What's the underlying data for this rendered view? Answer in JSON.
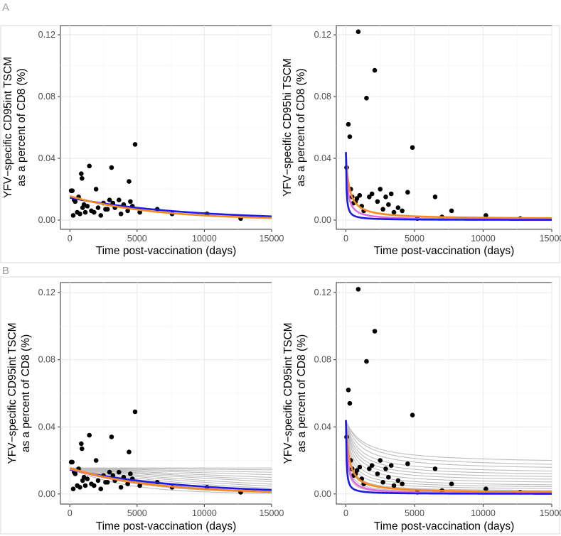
{
  "panel_labels": {
    "A": "A",
    "B": "B"
  },
  "series_colors": {
    "blue": "#1a1ae6",
    "violet": "#e06be0",
    "orange": "#f58a1f",
    "realizations": "#bdbdbd"
  },
  "chart_data": [
    {
      "id": "A-left",
      "type": "scatter",
      "title": "",
      "xlabel": "Time post-vaccination (days)",
      "ylabel_line1": "YFV−specific CD95int TSCM",
      "ylabel_line2": "as a percent of CD8 (%)",
      "xlim": [
        -700,
        15000
      ],
      "ylim": [
        -0.006,
        0.126
      ],
      "xticks": [
        0,
        5000,
        10000,
        15000
      ],
      "xtick_labels": [
        "0",
        "5000",
        "10000",
        "15000"
      ],
      "yticks": [
        0,
        0.04,
        0.08,
        0.12
      ],
      "ytick_labels": [
        "0.00",
        "0.04",
        "0.08",
        "0.12"
      ],
      "points": [
        [
          100,
          0.019
        ],
        [
          180,
          0.019
        ],
        [
          250,
          0.003
        ],
        [
          320,
          0.013
        ],
        [
          400,
          0.012
        ],
        [
          550,
          0.005
        ],
        [
          650,
          0.015
        ],
        [
          750,
          0.004
        ],
        [
          850,
          0.03
        ],
        [
          900,
          0.027
        ],
        [
          950,
          0.008
        ],
        [
          1050,
          0.01
        ],
        [
          1150,
          0.005
        ],
        [
          1300,
          0.009
        ],
        [
          1450,
          0.035
        ],
        [
          1600,
          0.006
        ],
        [
          1800,
          0.005
        ],
        [
          1950,
          0.02
        ],
        [
          2100,
          0.008
        ],
        [
          2300,
          0.003
        ],
        [
          2500,
          0.011
        ],
        [
          2650,
          0.007
        ],
        [
          2800,
          0.007
        ],
        [
          2950,
          0.013
        ],
        [
          3100,
          0.034
        ],
        [
          3200,
          0.011
        ],
        [
          3350,
          0.008
        ],
        [
          3650,
          0.013
        ],
        [
          3800,
          0.004
        ],
        [
          4000,
          0.01
        ],
        [
          4300,
          0.006
        ],
        [
          4400,
          0.025
        ],
        [
          4500,
          0.012
        ],
        [
          4650,
          0.009
        ],
        [
          4850,
          0.049
        ],
        [
          5200,
          0.005
        ],
        [
          6500,
          0.007
        ],
        [
          7600,
          0.004
        ],
        [
          10200,
          0.004
        ],
        [
          12700,
          0.001
        ]
      ],
      "series": [
        {
          "name": "blue",
          "model": "exp",
          "a": 0.0145,
          "b": 0,
          "c": 0.00012
        },
        {
          "name": "orange",
          "model": "exp",
          "a": 0.0155,
          "b": 0,
          "c": 0.000165
        }
      ],
      "realizations": []
    },
    {
      "id": "A-right",
      "type": "scatter",
      "title": "",
      "xlabel": "Time post-vaccination (days)",
      "ylabel_line1": "YFV−specific CD95hi TSCM",
      "ylabel_line2": "as a percent of CD8 (%)",
      "xlim": [
        -700,
        15000
      ],
      "ylim": [
        -0.006,
        0.126
      ],
      "xticks": [
        0,
        5000,
        10000,
        15000
      ],
      "xtick_labels": [
        "0",
        "5000",
        "10000",
        "15000"
      ],
      "yticks": [
        0,
        0.04,
        0.08,
        0.12
      ],
      "ytick_labels": [
        "0.00",
        "0.04",
        "0.08",
        "0.12"
      ],
      "points": [
        [
          50,
          0.034
        ],
        [
          180,
          0.062
        ],
        [
          280,
          0.054
        ],
        [
          350,
          0.02
        ],
        [
          450,
          0.015
        ],
        [
          550,
          0.011
        ],
        [
          700,
          0.012
        ],
        [
          800,
          0.014
        ],
        [
          900,
          0.122
        ],
        [
          1000,
          0.016
        ],
        [
          1150,
          0.009
        ],
        [
          1300,
          0.006
        ],
        [
          1500,
          0.079
        ],
        [
          1700,
          0.015
        ],
        [
          1900,
          0.017
        ],
        [
          2100,
          0.097
        ],
        [
          2300,
          0.012
        ],
        [
          2500,
          0.02
        ],
        [
          2700,
          0.007
        ],
        [
          2900,
          0.015
        ],
        [
          3100,
          0.01
        ],
        [
          3300,
          0.017
        ],
        [
          3500,
          0.005
        ],
        [
          3800,
          0.008
        ],
        [
          4100,
          0.006
        ],
        [
          4500,
          0.018
        ],
        [
          4850,
          0.047
        ],
        [
          5200,
          0.001
        ],
        [
          6500,
          0.015
        ],
        [
          7000,
          0.002
        ],
        [
          7700,
          0.006
        ],
        [
          10200,
          0.003
        ],
        [
          12700,
          0.001
        ]
      ],
      "series": [
        {
          "name": "orange",
          "model": "hyp",
          "a": 0.044,
          "b": 0.0006,
          "c": 0.0045
        },
        {
          "name": "violet",
          "model": "hyp",
          "a": 0.044,
          "b": 0,
          "c": 0.0085
        },
        {
          "name": "blue",
          "model": "hyp",
          "a": 0.044,
          "b": 0,
          "c": 0.025
        }
      ],
      "realizations": []
    },
    {
      "id": "B-left",
      "type": "scatter",
      "title": "",
      "xlabel": "Time post-vaccination (days)",
      "ylabel_line1": "YFV−specific CD95int TSCM",
      "ylabel_line2": "as a percent of CD8 (%)",
      "xlim": [
        -700,
        15000
      ],
      "ylim": [
        -0.006,
        0.126
      ],
      "xticks": [
        0,
        5000,
        10000,
        15000
      ],
      "xtick_labels": [
        "0",
        "5000",
        "10000",
        "15000"
      ],
      "yticks": [
        0,
        0.04,
        0.08,
        0.12
      ],
      "ytick_labels": [
        "0.00",
        "0.04",
        "0.08",
        "0.12"
      ],
      "points": [
        [
          100,
          0.019
        ],
        [
          180,
          0.019
        ],
        [
          250,
          0.003
        ],
        [
          320,
          0.013
        ],
        [
          400,
          0.012
        ],
        [
          550,
          0.005
        ],
        [
          650,
          0.015
        ],
        [
          750,
          0.004
        ],
        [
          850,
          0.03
        ],
        [
          900,
          0.027
        ],
        [
          950,
          0.008
        ],
        [
          1050,
          0.01
        ],
        [
          1150,
          0.005
        ],
        [
          1300,
          0.009
        ],
        [
          1450,
          0.035
        ],
        [
          1600,
          0.006
        ],
        [
          1800,
          0.005
        ],
        [
          1950,
          0.02
        ],
        [
          2100,
          0.008
        ],
        [
          2300,
          0.003
        ],
        [
          2500,
          0.011
        ],
        [
          2650,
          0.007
        ],
        [
          2800,
          0.007
        ],
        [
          2950,
          0.013
        ],
        [
          3100,
          0.034
        ],
        [
          3200,
          0.011
        ],
        [
          3350,
          0.008
        ],
        [
          3650,
          0.013
        ],
        [
          3800,
          0.004
        ],
        [
          4000,
          0.01
        ],
        [
          4300,
          0.006
        ],
        [
          4400,
          0.025
        ],
        [
          4500,
          0.012
        ],
        [
          4650,
          0.009
        ],
        [
          4850,
          0.049
        ],
        [
          5200,
          0.005
        ],
        [
          6500,
          0.007
        ],
        [
          7600,
          0.004
        ],
        [
          10200,
          0.004
        ],
        [
          12700,
          0.001
        ]
      ],
      "series": [
        {
          "name": "blue",
          "model": "exp",
          "a": 0.0145,
          "b": 0,
          "c": 0.00012
        },
        {
          "name": "violet",
          "model": "exp",
          "a": 0.015,
          "b": 0,
          "c": 0.00016
        },
        {
          "name": "orange",
          "model": "exp",
          "a": 0.0155,
          "b": 0,
          "c": 0.000165
        }
      ],
      "realizations": [
        {
          "model": "exp",
          "a": 0.0155,
          "b": 0,
          "c": 0.0
        },
        {
          "model": "exp",
          "a": 0.0155,
          "b": 0,
          "c": 5e-06
        },
        {
          "model": "exp",
          "a": 0.0155,
          "b": 0,
          "c": 1.2e-05
        },
        {
          "model": "exp",
          "a": 0.0155,
          "b": 0,
          "c": 2e-05
        },
        {
          "model": "exp",
          "a": 0.0155,
          "b": 0,
          "c": 3e-05
        },
        {
          "model": "exp",
          "a": 0.0155,
          "b": 0,
          "c": 4e-05
        },
        {
          "model": "exp",
          "a": 0.0155,
          "b": 0,
          "c": 5e-05
        },
        {
          "model": "exp",
          "a": 0.0155,
          "b": 0,
          "c": 6.5e-05
        },
        {
          "model": "exp",
          "a": 0.0155,
          "b": 0,
          "c": 8e-05
        },
        {
          "model": "exp",
          "a": 0.0155,
          "b": 0,
          "c": 0.0001
        },
        {
          "model": "exp",
          "a": 0.0155,
          "b": 0,
          "c": 0.00012
        },
        {
          "model": "exp",
          "a": 0.0155,
          "b": 0,
          "c": 0.00015
        },
        {
          "model": "exp",
          "a": 0.0155,
          "b": 0,
          "c": 0.00019
        },
        {
          "model": "exp",
          "a": 0.0155,
          "b": 0,
          "c": 0.00025
        }
      ]
    },
    {
      "id": "B-right",
      "type": "scatter",
      "title": "",
      "xlabel": "Time post-vaccination (days)",
      "ylabel_line1": "YFV−specific CD95int TSCM",
      "ylabel_line2": "as a percent of CD8 (%)",
      "xlim": [
        -700,
        15000
      ],
      "ylim": [
        -0.006,
        0.126
      ],
      "xticks": [
        0,
        5000,
        10000,
        15000
      ],
      "xtick_labels": [
        "0",
        "5000",
        "10000",
        "15000"
      ],
      "yticks": [
        0,
        0.04,
        0.08,
        0.12
      ],
      "ytick_labels": [
        "0.00",
        "0.04",
        "0.08",
        "0.12"
      ],
      "points": [
        [
          50,
          0.034
        ],
        [
          180,
          0.062
        ],
        [
          280,
          0.054
        ],
        [
          350,
          0.02
        ],
        [
          450,
          0.015
        ],
        [
          550,
          0.011
        ],
        [
          700,
          0.012
        ],
        [
          800,
          0.014
        ],
        [
          900,
          0.122
        ],
        [
          1000,
          0.016
        ],
        [
          1150,
          0.009
        ],
        [
          1300,
          0.006
        ],
        [
          1500,
          0.079
        ],
        [
          1700,
          0.015
        ],
        [
          1900,
          0.017
        ],
        [
          2100,
          0.097
        ],
        [
          2300,
          0.012
        ],
        [
          2500,
          0.02
        ],
        [
          2700,
          0.007
        ],
        [
          2900,
          0.015
        ],
        [
          3100,
          0.01
        ],
        [
          3300,
          0.017
        ],
        [
          3500,
          0.005
        ],
        [
          3800,
          0.008
        ],
        [
          4100,
          0.006
        ],
        [
          4500,
          0.018
        ],
        [
          4850,
          0.047
        ],
        [
          5200,
          0.001
        ],
        [
          6500,
          0.015
        ],
        [
          7000,
          0.002
        ],
        [
          7700,
          0.006
        ],
        [
          10200,
          0.003
        ],
        [
          12700,
          0.001
        ]
      ],
      "series": [
        {
          "name": "orange",
          "model": "hyp",
          "a": 0.044,
          "b": 0.0006,
          "c": 0.0045
        },
        {
          "name": "violet",
          "model": "hyp",
          "a": 0.044,
          "b": 0,
          "c": 0.0085
        },
        {
          "name": "blue",
          "model": "hyp",
          "a": 0.044,
          "b": 0,
          "c": 0.025
        }
      ],
      "realizations": [
        {
          "model": "line",
          "a": 0.044,
          "b": 0.018,
          "c": 0.0008
        },
        {
          "model": "line",
          "a": 0.044,
          "b": 0.0155,
          "c": 0.0008
        },
        {
          "model": "line",
          "a": 0.044,
          "b": 0.014,
          "c": 0.001
        },
        {
          "model": "line",
          "a": 0.044,
          "b": 0.012,
          "c": 0.0012
        },
        {
          "model": "line",
          "a": 0.044,
          "b": 0.0105,
          "c": 0.0014
        },
        {
          "model": "line",
          "a": 0.044,
          "b": 0.009,
          "c": 0.0016
        },
        {
          "model": "line",
          "a": 0.044,
          "b": 0.0075,
          "c": 0.0018
        },
        {
          "model": "line",
          "a": 0.044,
          "b": 0.006,
          "c": 0.0021
        },
        {
          "model": "line",
          "a": 0.044,
          "b": 0.0045,
          "c": 0.0025
        },
        {
          "model": "line",
          "a": 0.044,
          "b": 0.0035,
          "c": 0.003
        },
        {
          "model": "line",
          "a": 0.044,
          "b": 0.0025,
          "c": 0.0036
        },
        {
          "model": "line",
          "a": 0.044,
          "b": 0.0015,
          "c": 0.0045
        },
        {
          "model": "line",
          "a": 0.044,
          "b": 0.001,
          "c": 0.0055
        },
        {
          "model": "line",
          "a": 0.044,
          "b": 0.0005,
          "c": 0.0068
        },
        {
          "model": "line",
          "a": 0.044,
          "b": 0.0002,
          "c": 0.0085
        },
        {
          "model": "line",
          "a": 0.044,
          "b": 0.0,
          "c": 0.011
        }
      ]
    }
  ]
}
